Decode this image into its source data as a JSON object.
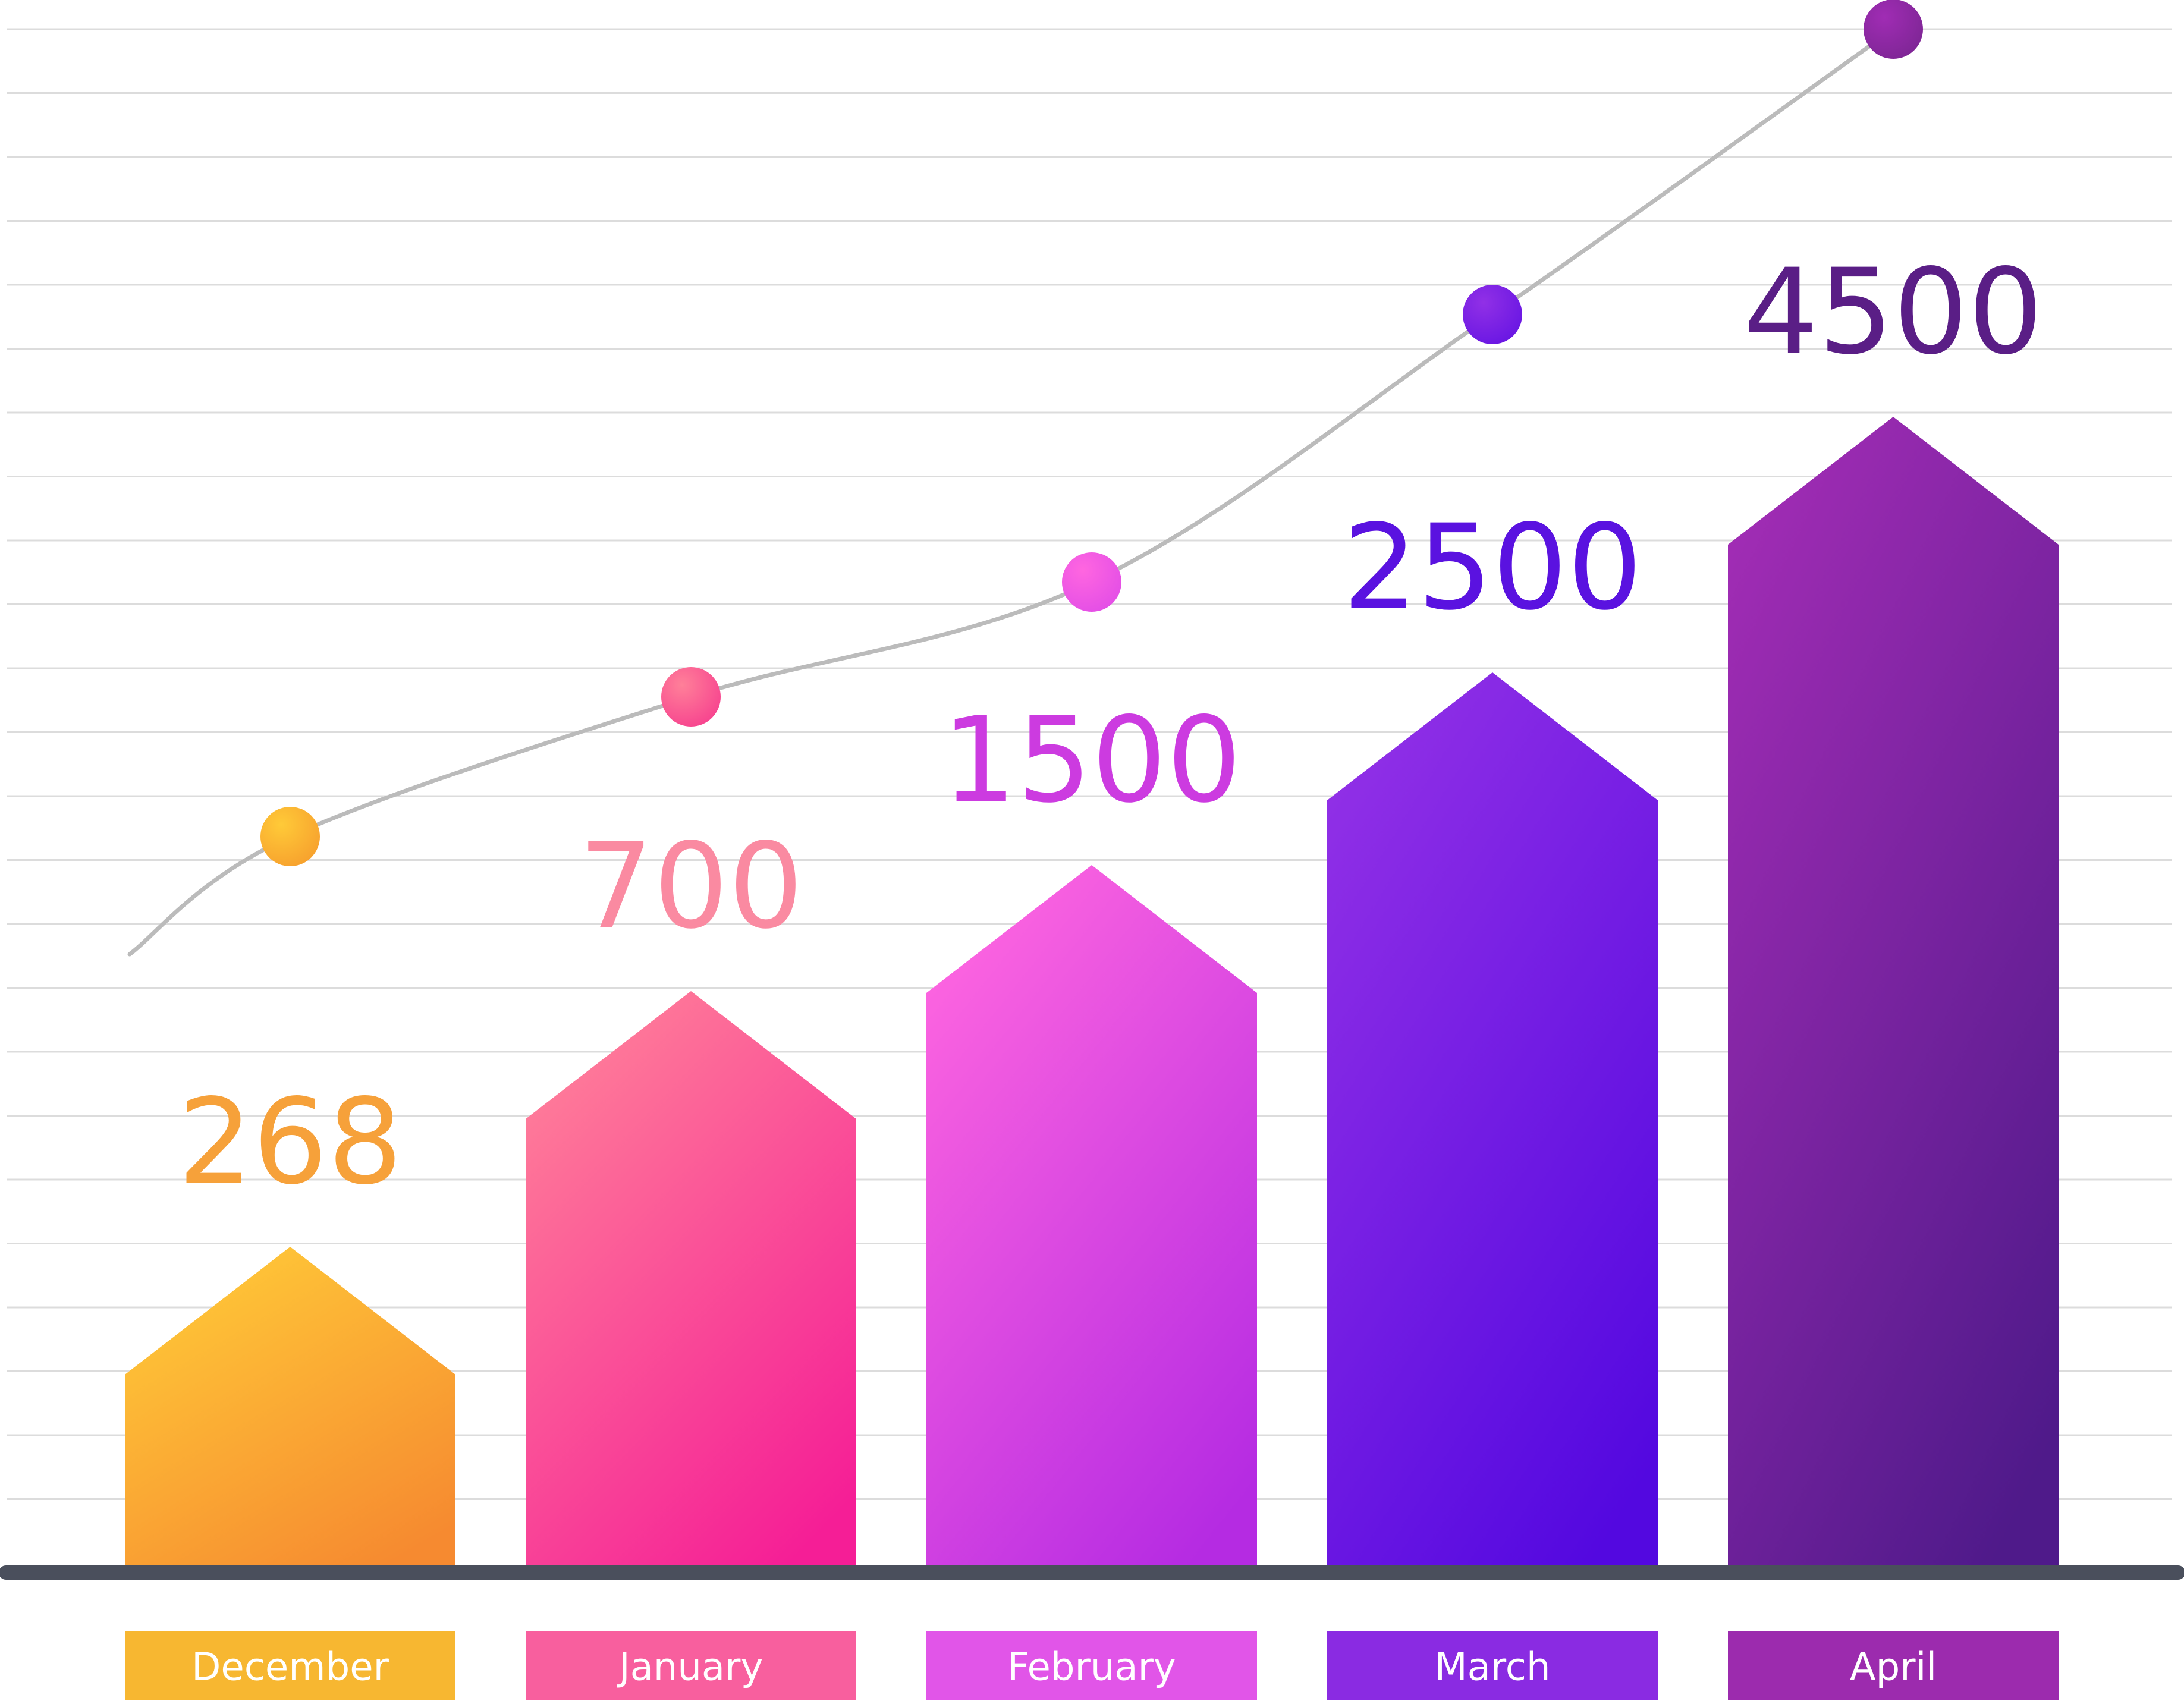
{
  "chart_data": {
    "type": "bar",
    "title": "",
    "xlabel": "",
    "ylabel": "",
    "categories": [
      "December",
      "January",
      "February",
      "March",
      "April"
    ],
    "values": [
      268,
      700,
      1500,
      2500,
      4500
    ],
    "value_labels": [
      "268",
      "700",
      "1500",
      "2500",
      "4500"
    ],
    "ylim": [
      0,
      4500
    ],
    "grid": true,
    "legend": "none",
    "trend_line": true,
    "colors": {
      "bar_tops": [
        "#FFCA38",
        "#FF8099",
        "#FF66E0",
        "#9130E6",
        "#A02CB4"
      ],
      "bar_bottoms": [
        "#F68A30",
        "#F51E96",
        "#B52BE2",
        "#5308E0",
        "#4F1A8A"
      ],
      "label_fills": [
        "#F7B731",
        "#F85F9E",
        "#E155E8",
        "#8A2BE2",
        "#9C2BAE"
      ],
      "value_text": [
        "#F6A13A",
        "#FA8AA1",
        "#CC3BE0",
        "#5A12E0",
        "#5A1E86"
      ],
      "dots": [
        "#F7A22E",
        "#F7458F",
        "#E44FE6",
        "#6A17E3",
        "#7F2696"
      ],
      "trend_line": "#BBBBBB",
      "baseline": "#4A4F5C",
      "grid": "#DCDCDC"
    }
  }
}
